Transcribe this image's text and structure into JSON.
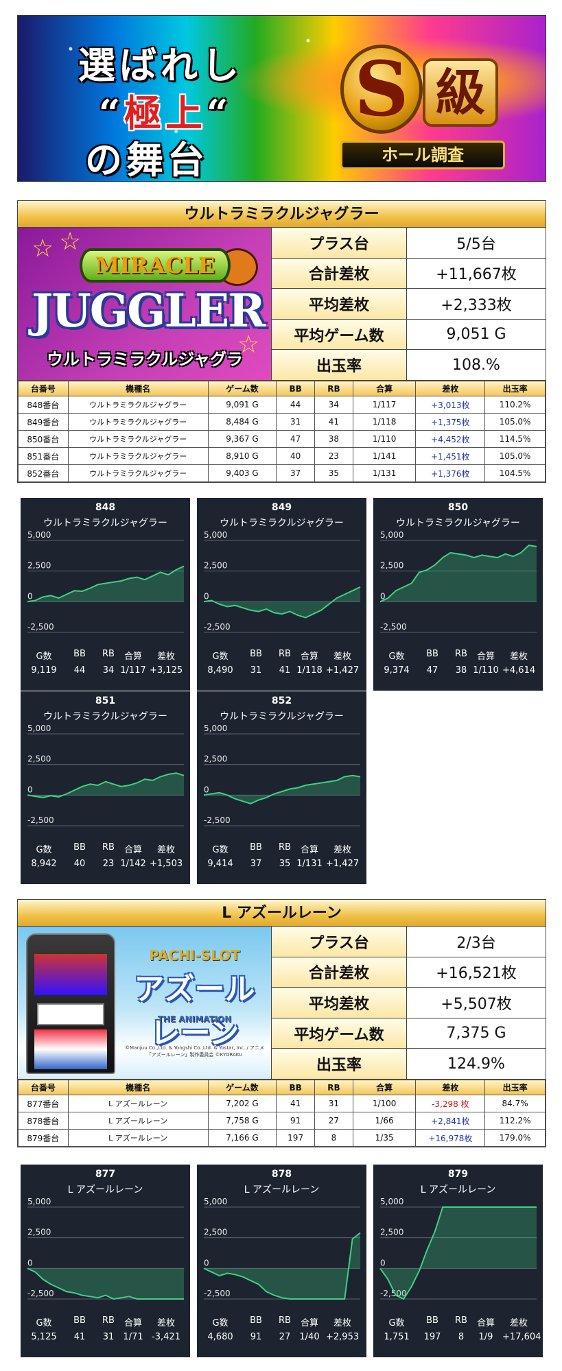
{
  "banner": {
    "line1": "選ばれし",
    "line2_open": "“",
    "line2_main": "極上",
    "line2_close": "“",
    "line3": "の舞台",
    "badge_s": "S",
    "badge_kyu": "級",
    "badge_ribbon": "ホール調査"
  },
  "colors": {
    "header_gold": "#f0c24a",
    "plus": "#2233aa",
    "minus": "#d01515",
    "card_bg": "#1d2430",
    "chart_line": "#3fcf86"
  },
  "sections": [
    {
      "title": "ウルトラミラクルジャグラー",
      "logo": {
        "word1": "MIRACLE",
        "word2": "JUGGLER",
        "word3": "ウルトラミラクルジャグラー"
      },
      "stats": [
        {
          "label": "プラス台",
          "value": "5/5台"
        },
        {
          "label": "合計差枚",
          "value": "+11,667枚"
        },
        {
          "label": "平均差枚",
          "value": "+2,333枚"
        },
        {
          "label": "平均ゲーム数",
          "value": "9,051 G"
        },
        {
          "label": "出玉率",
          "value": "108.%"
        }
      ],
      "columns": [
        "台番号",
        "機種名",
        "ゲーム数",
        "BB",
        "RB",
        "合算",
        "差枚",
        "出玉率"
      ],
      "rows": [
        [
          "848番台",
          "ウルトラミラクルジャグラー",
          "9,091 G",
          "44",
          "34",
          "1/117",
          "+3,013枚",
          "110.2%"
        ],
        [
          "849番台",
          "ウルトラミラクルジャグラー",
          "8,484 G",
          "31",
          "41",
          "1/118",
          "+1,375枚",
          "105.0%"
        ],
        [
          "850番台",
          "ウルトラミラクルジャグラー",
          "9,367 G",
          "47",
          "38",
          "1/110",
          "+4,452枚",
          "114.5%"
        ],
        [
          "851番台",
          "ウルトラミラクルジャグラー",
          "8,910 G",
          "40",
          "23",
          "1/141",
          "+1,451枚",
          "105.0%"
        ],
        [
          "852番台",
          "ウルトラミラクルジャグラー",
          "9,403 G",
          "37",
          "35",
          "1/131",
          "+1,376枚",
          "104.5%"
        ]
      ]
    },
    {
      "title": "L アズールレーン",
      "logo": {
        "word1": "PACHI-SLOT",
        "word2": "アズールレーン",
        "word3": "THE ANIMATION",
        "copyright": "©Manjuu Co.,Ltd. & Yongshi Co.,Ltd. & Yostar, Inc. / アニメ「アズールレーン」製作委員会 ©KYORAKU"
      },
      "stats": [
        {
          "label": "プラス台",
          "value": "2/3台"
        },
        {
          "label": "合計差枚",
          "value": "+16,521枚"
        },
        {
          "label": "平均差枚",
          "value": "+5,507枚"
        },
        {
          "label": "平均ゲーム数",
          "value": "7,375 G"
        },
        {
          "label": "出玉率",
          "value": "124.9%"
        }
      ],
      "columns": [
        "台番号",
        "機種名",
        "ゲーム数",
        "BB",
        "RB",
        "合算",
        "差枚",
        "出玉率"
      ],
      "rows": [
        [
          "877番台",
          "L アズールレーン",
          "7,202 G",
          "41",
          "31",
          "1/100",
          "-3,298 枚",
          "84.7%"
        ],
        [
          "878番台",
          "L アズールレーン",
          "7,758 G",
          "91",
          "27",
          "1/66",
          "+2,841枚",
          "112.2%"
        ],
        [
          "879番台",
          "L アズールレーン",
          "7,166 G",
          "197",
          "8",
          "1/35",
          "+16,978枚",
          "179.0%"
        ]
      ]
    }
  ],
  "card_labels": [
    "G数",
    "BB",
    "RB",
    "合算",
    "差枚"
  ],
  "chart_data": [
    {
      "type": "area",
      "title": "848",
      "subtitle": "ウルトラミラクルジャグラー",
      "yticks": [
        "5,000",
        "2,500",
        "0",
        "-2,500"
      ],
      "ylim": [
        -2500,
        5000
      ],
      "values": [
        0,
        100,
        400,
        500,
        300,
        600,
        900,
        850,
        1100,
        1400,
        1500,
        1600,
        1700,
        1900,
        2000,
        1800,
        2100,
        2400,
        2200,
        2600,
        2900
      ],
      "stats": [
        "9,119",
        "44",
        "34",
        "1/117",
        "+3,125"
      ]
    },
    {
      "type": "area",
      "title": "849",
      "subtitle": "ウルトラミラクルジャグラー",
      "yticks": [
        "5,000",
        "2,500",
        "0",
        "-2,500"
      ],
      "ylim": [
        -2500,
        5000
      ],
      "values": [
        0,
        100,
        -200,
        -400,
        -300,
        -500,
        -700,
        -800,
        -600,
        -900,
        -1000,
        -800,
        -1100,
        -1300,
        -1000,
        -700,
        -200,
        300,
        600,
        900,
        1200
      ],
      "stats": [
        "8,490",
        "31",
        "41",
        "1/118",
        "+1,427"
      ]
    },
    {
      "type": "area",
      "title": "850",
      "subtitle": "ウルトラミラクルジャグラー",
      "yticks": [
        "5,000",
        "2,500",
        "0",
        "-2,500"
      ],
      "ylim": [
        -2500,
        5000
      ],
      "values": [
        0,
        300,
        900,
        1200,
        1500,
        2400,
        2600,
        3000,
        3600,
        4000,
        3900,
        3800,
        3600,
        3800,
        3700,
        3600,
        3900,
        3700,
        4000,
        4600,
        4500
      ],
      "stats": [
        "9,374",
        "47",
        "38",
        "1/110",
        "+4,614"
      ]
    },
    {
      "type": "area",
      "title": "851",
      "subtitle": "ウルトラミラクルジャグラー",
      "yticks": [
        "5,000",
        "2,500",
        "0",
        "-2,500"
      ],
      "ylim": [
        -2500,
        5000
      ],
      "values": [
        0,
        -100,
        -200,
        -50,
        -150,
        100,
        400,
        700,
        900,
        800,
        1100,
        900,
        700,
        800,
        1000,
        1300,
        1200,
        1500,
        1700,
        1800,
        1600
      ],
      "stats": [
        "8,942",
        "40",
        "23",
        "1/142",
        "+1,503"
      ]
    },
    {
      "type": "area",
      "title": "852",
      "subtitle": "ウルトラミラクルジャグラー",
      "yticks": [
        "5,000",
        "2,500",
        "0",
        "-2,500"
      ],
      "ylim": [
        -2500,
        5000
      ],
      "values": [
        0,
        100,
        200,
        0,
        -300,
        -500,
        -700,
        -400,
        -200,
        100,
        300,
        500,
        600,
        800,
        900,
        1000,
        1100,
        1200,
        1500,
        1600,
        1500
      ],
      "stats": [
        "9,414",
        "37",
        "35",
        "1/131",
        "+1,427"
      ]
    },
    {
      "type": "area",
      "title": "877",
      "subtitle": "L アズールレーン",
      "yticks": [
        "5,000",
        "2,500",
        "0",
        "-2,500"
      ],
      "ylim": [
        -2500,
        5000
      ],
      "values": [
        0,
        -300,
        -900,
        -1300,
        -1600,
        -1900,
        -2000,
        -2200,
        -2300,
        -2400,
        -2200,
        -2500,
        -2400,
        -2300,
        -2500,
        -2600,
        -2800,
        -2900,
        -3100,
        -3300,
        -3400
      ],
      "stats": [
        "5,125",
        "41",
        "31",
        "1/71",
        "-3,421"
      ]
    },
    {
      "type": "area",
      "title": "878",
      "subtitle": "L アズールレーン",
      "yticks": [
        "5,000",
        "2,500",
        "0",
        "-2,500"
      ],
      "ylim": [
        -2500,
        5000
      ],
      "values": [
        0,
        -300,
        -600,
        -400,
        -500,
        -700,
        -1000,
        -1300,
        -1900,
        -2200,
        -2400,
        -2500,
        -2700,
        -2900,
        -3000,
        -3000,
        -3000,
        -3000,
        -2800,
        2400,
        2900
      ],
      "stats": [
        "4,680",
        "91",
        "27",
        "1/40",
        "+2,953"
      ]
    },
    {
      "type": "area",
      "title": "879",
      "subtitle": "L アズールレーン",
      "yticks": [
        "5,000",
        "2,500",
        "0",
        "-2,500"
      ],
      "ylim": [
        -2500,
        5000
      ],
      "values": [
        0,
        -900,
        -2200,
        -2500,
        -1500,
        -200,
        1500,
        3000,
        5000,
        5000,
        5000,
        5000,
        5000,
        5000,
        5000,
        5000,
        5000,
        5000,
        5000,
        5000,
        5000
      ],
      "stats": [
        "1,751",
        "197",
        "8",
        "1/9",
        "+17,604"
      ]
    }
  ]
}
